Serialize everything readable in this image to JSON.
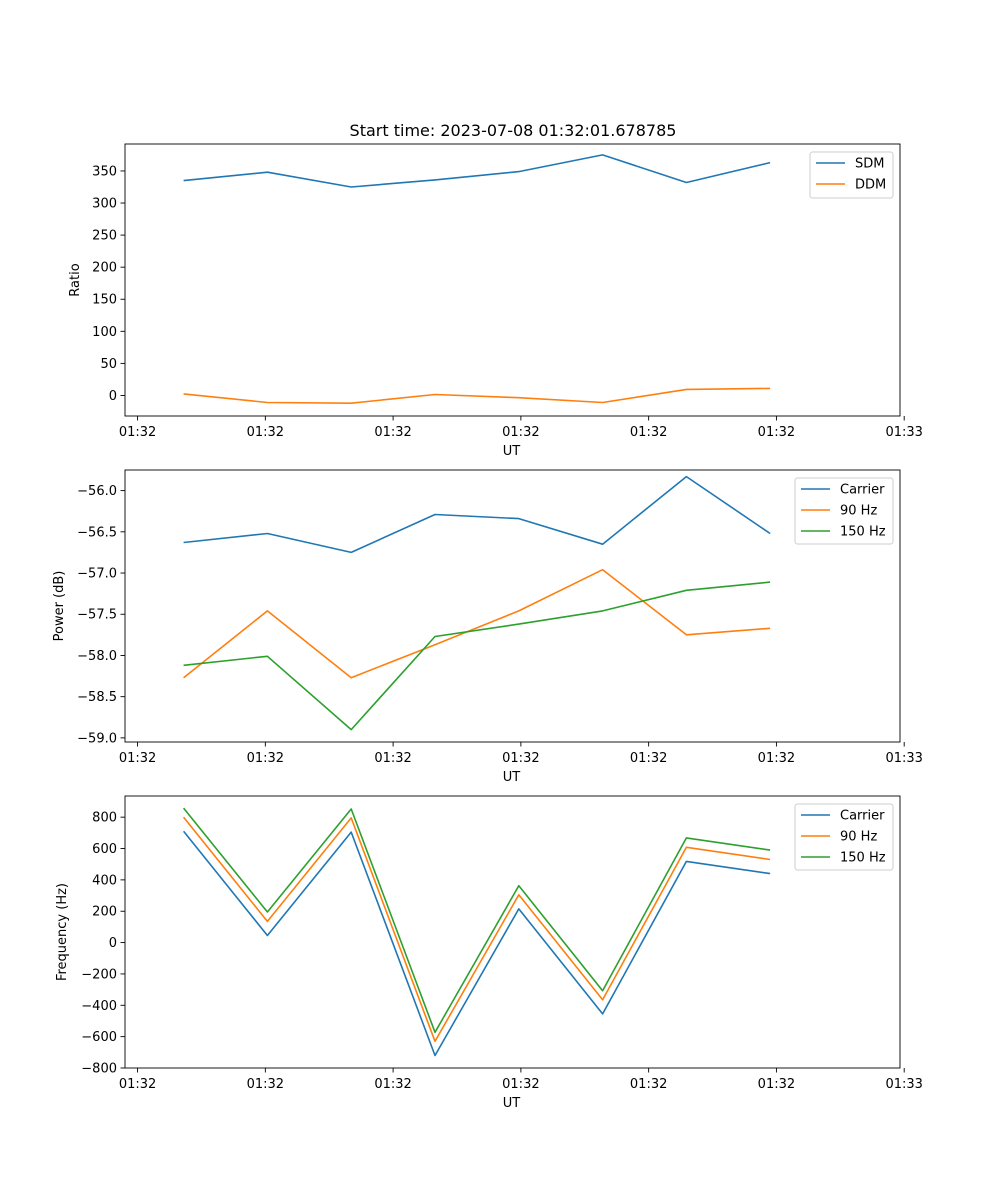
{
  "figure_title": "Start time: 2023-07-08 01:32:01.678785",
  "colors": {
    "blue": "#1f77b4",
    "orange": "#ff7f0e",
    "green": "#2ca02c"
  },
  "x_tick_labels": [
    "01:32",
    "01:32",
    "01:32",
    "01:32",
    "01:32",
    "01:32",
    "01:33"
  ],
  "chart_data": [
    {
      "type": "line",
      "xlabel": "UT",
      "ylabel": "Ratio",
      "x": [
        1,
        2,
        3,
        4,
        5,
        6,
        7,
        8
      ],
      "xlim": [
        0.3,
        9.55
      ],
      "x_ticks": [
        0.45,
        1.975,
        3.5,
        5.025,
        6.55,
        8.075,
        9.6
      ],
      "ylim": [
        -32,
        392
      ],
      "y_ticks": [
        0,
        50,
        100,
        150,
        200,
        250,
        300,
        350
      ],
      "y_tick_labels": [
        "0",
        "50",
        "100",
        "150",
        "200",
        "250",
        "300",
        "350"
      ],
      "legend_position": "top-right",
      "series": [
        {
          "name": "SDM",
          "color": "#1f77b4",
          "values": [
            335,
            348,
            325,
            336,
            349,
            375,
            332,
            363
          ]
        },
        {
          "name": "DDM",
          "color": "#ff7f0e",
          "values": [
            2.5,
            -11,
            -12,
            1.5,
            -3.5,
            -11,
            9.5,
            11
          ]
        }
      ]
    },
    {
      "type": "line",
      "xlabel": "UT",
      "ylabel": "Power (dB)",
      "x": [
        1,
        2,
        3,
        4,
        5,
        6,
        7,
        8
      ],
      "xlim": [
        0.3,
        9.55
      ],
      "x_ticks": [
        0.45,
        1.975,
        3.5,
        5.025,
        6.55,
        8.075,
        9.6
      ],
      "ylim": [
        -59.05,
        -55.75
      ],
      "y_ticks": [
        -59.0,
        -58.5,
        -58.0,
        -57.5,
        -57.0,
        -56.5,
        -56.0
      ],
      "y_tick_labels": [
        "−59.0",
        "−58.5",
        "−58.0",
        "−57.5",
        "−57.0",
        "−56.5",
        "−56.0"
      ],
      "legend_position": "top-right",
      "series": [
        {
          "name": "Carrier",
          "color": "#1f77b4",
          "values": [
            -56.63,
            -56.52,
            -56.75,
            -56.29,
            -56.34,
            -56.65,
            -55.83,
            -56.52
          ]
        },
        {
          "name": "90 Hz",
          "color": "#ff7f0e",
          "values": [
            -58.27,
            -57.46,
            -58.27,
            -57.87,
            -57.46,
            -56.96,
            -57.75,
            -57.67
          ]
        },
        {
          "name": "150 Hz",
          "color": "#2ca02c",
          "values": [
            -58.12,
            -58.01,
            -58.9,
            -57.77,
            -57.62,
            -57.46,
            -57.21,
            -57.11
          ]
        }
      ]
    },
    {
      "type": "line",
      "xlabel": "UT",
      "ylabel": "Frequency (Hz)",
      "x": [
        1,
        2,
        3,
        4,
        5,
        6,
        7,
        8
      ],
      "xlim": [
        0.3,
        9.55
      ],
      "x_ticks": [
        0.45,
        1.975,
        3.5,
        5.025,
        6.55,
        8.075,
        9.6
      ],
      "ylim": [
        -800,
        935
      ],
      "y_ticks": [
        -800,
        -600,
        -400,
        -200,
        0,
        200,
        400,
        600,
        800
      ],
      "y_tick_labels": [
        "−800",
        "−600",
        "−400",
        "−200",
        "0",
        "200",
        "400",
        "600",
        "800"
      ],
      "legend_position": "top-right",
      "series": [
        {
          "name": "Carrier",
          "color": "#1f77b4",
          "values": [
            710,
            45,
            705,
            -720,
            215,
            -455,
            518,
            440
          ]
        },
        {
          "name": "90 Hz",
          "color": "#ff7f0e",
          "values": [
            800,
            135,
            795,
            -630,
            305,
            -365,
            608,
            530
          ]
        },
        {
          "name": "150 Hz",
          "color": "#2ca02c",
          "values": [
            858,
            195,
            852,
            -572,
            363,
            -307,
            668,
            590
          ]
        }
      ]
    }
  ]
}
